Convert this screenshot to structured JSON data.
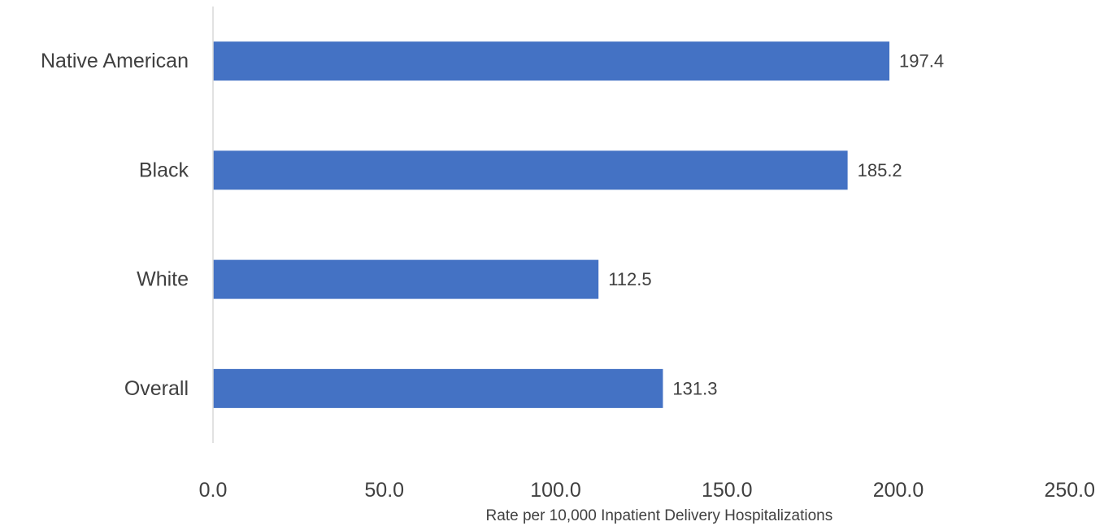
{
  "chart_data": {
    "type": "bar",
    "orientation": "horizontal",
    "categories": [
      "Native American",
      "Black",
      "White",
      "Overall"
    ],
    "values": [
      197.4,
      185.2,
      112.5,
      131.3
    ],
    "value_labels": [
      "197.4",
      "185.2",
      "112.5",
      "131.3"
    ],
    "xlim": [
      0,
      250
    ],
    "x_ticks": [
      0,
      50,
      100,
      150,
      200,
      250
    ],
    "x_tick_labels": [
      "0.0",
      "50.0",
      "100.0",
      "150.0",
      "200.0",
      "250.0"
    ],
    "xlabel": "Rate per 10,000 Inpatient Delivery Hospitalizations",
    "ylabel": "",
    "title": "",
    "grid": false,
    "legend": "none",
    "bar_color": "#4472C4",
    "axis_color": "#D9D9D9",
    "text_color": "#404040"
  }
}
